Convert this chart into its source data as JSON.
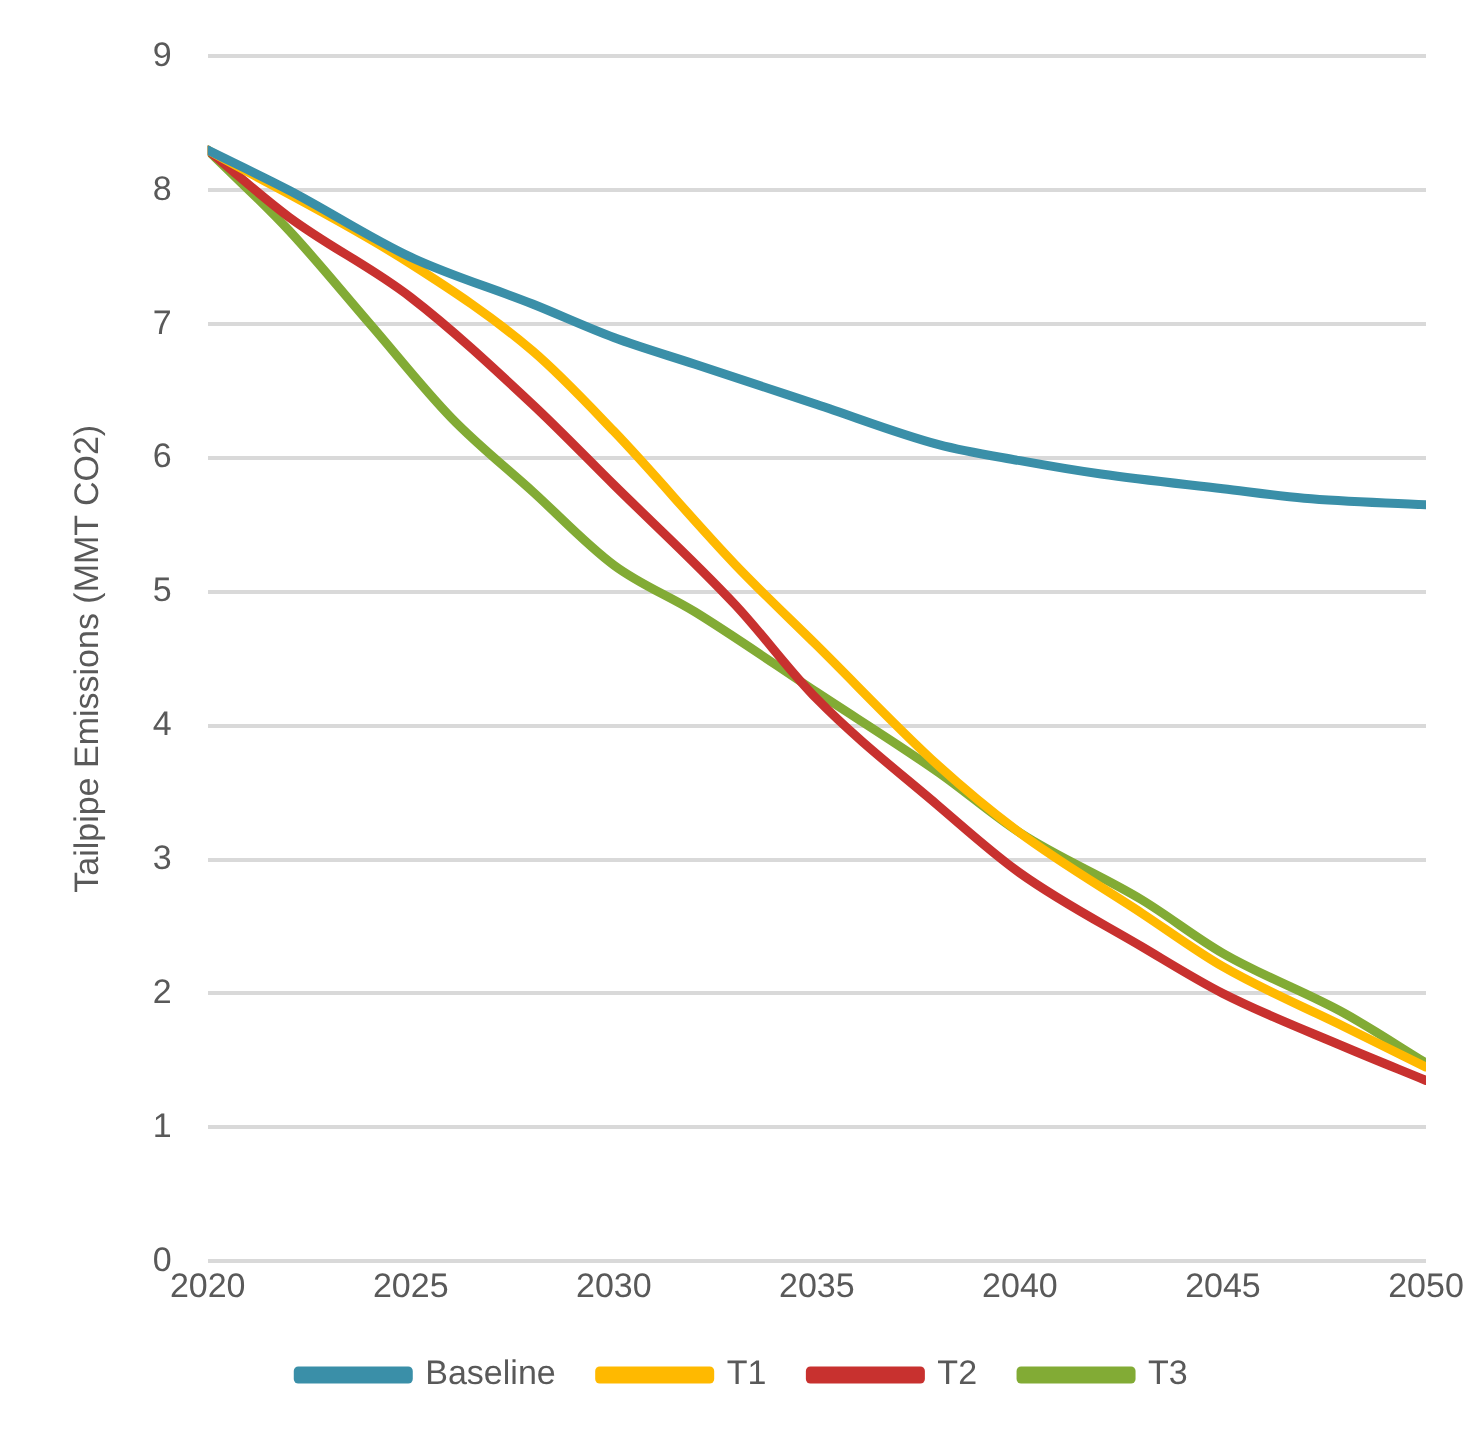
{
  "chart_data": {
    "type": "line",
    "ylabel": "Tailpipe Emissions (MMT CO2)",
    "xlim": [
      2020,
      2050
    ],
    "xticks": [
      2020,
      2025,
      2030,
      2035,
      2040,
      2045,
      2050
    ],
    "ylim": [
      0,
      9
    ],
    "yticks": [
      0,
      1,
      2,
      3,
      4,
      5,
      6,
      7,
      8,
      9
    ],
    "grid": "y",
    "legend": "bottom",
    "marker": "none",
    "line_style": "solid",
    "series": [
      {
        "name": "Baseline",
        "color": "#3a8fa8",
        "x": [
          2020,
          2022,
          2025,
          2028,
          2030,
          2032,
          2035,
          2038,
          2040,
          2042,
          2045,
          2047,
          2050
        ],
        "values": [
          8.3,
          8.0,
          7.5,
          7.15,
          6.9,
          6.7,
          6.4,
          6.1,
          5.98,
          5.88,
          5.77,
          5.7,
          5.65
        ]
      },
      {
        "name": "T1",
        "color": "#ffb900",
        "x": [
          2020,
          2025,
          2028,
          2030,
          2033,
          2035,
          2038,
          2040,
          2043,
          2045,
          2048,
          2050
        ],
        "values": [
          8.3,
          7.45,
          6.8,
          6.2,
          5.2,
          4.6,
          3.7,
          3.2,
          2.6,
          2.2,
          1.75,
          1.45
        ]
      },
      {
        "name": "T2",
        "color": "#c8312f",
        "x": [
          2020,
          2022,
          2025,
          2028,
          2030,
          2033,
          2035,
          2038,
          2040,
          2043,
          2045,
          2048,
          2050
        ],
        "values": [
          8.3,
          7.8,
          7.2,
          6.4,
          5.8,
          4.9,
          4.2,
          3.4,
          2.9,
          2.35,
          2.0,
          1.6,
          1.35
        ]
      },
      {
        "name": "T3",
        "color": "#82ab35",
        "x": [
          2020,
          2022,
          2024,
          2026,
          2028,
          2030,
          2032,
          2035,
          2038,
          2040,
          2043,
          2045,
          2048,
          2050
        ],
        "values": [
          8.3,
          7.7,
          7.0,
          6.3,
          5.75,
          5.2,
          4.85,
          4.25,
          3.65,
          3.2,
          2.7,
          2.3,
          1.85,
          1.48
        ]
      }
    ]
  }
}
